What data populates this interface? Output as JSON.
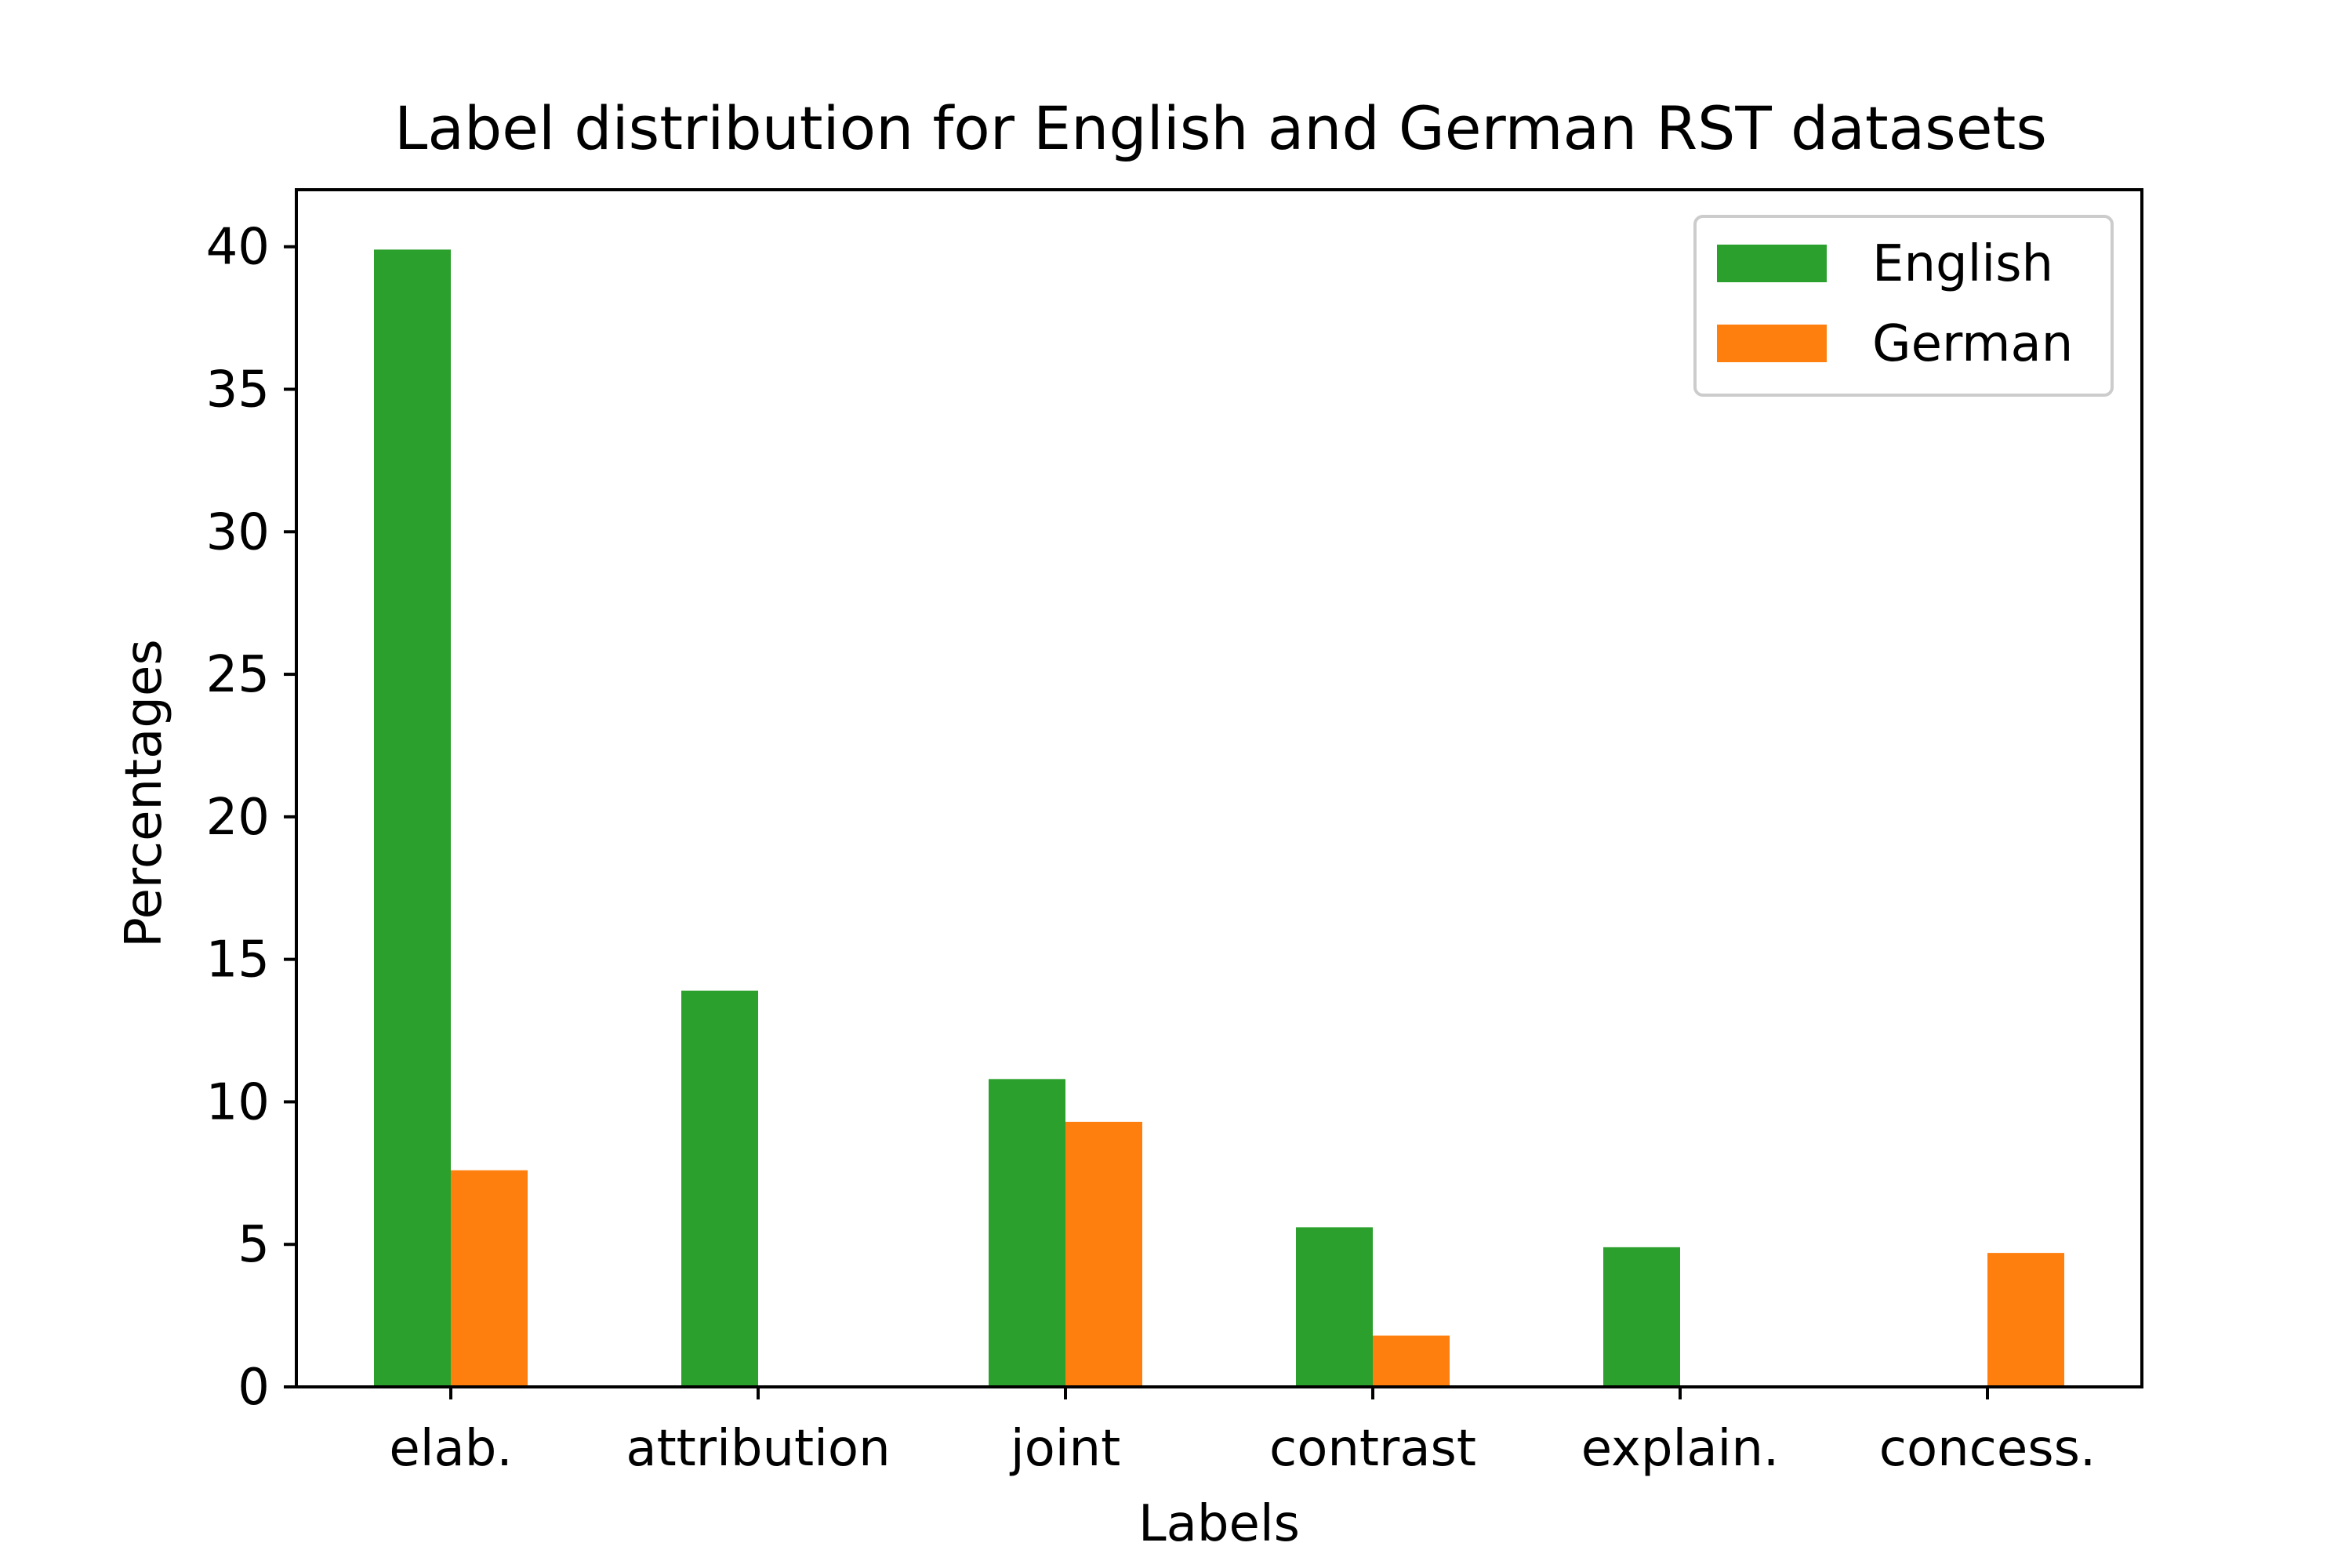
{
  "chart_data": {
    "type": "bar",
    "title": "Label distribution for English and German RST datasets",
    "xlabel": "Labels",
    "ylabel": "Percentages",
    "categories": [
      "elab.",
      "attribution",
      "joint",
      "contrast",
      "explain.",
      "concess."
    ],
    "series": [
      {
        "name": "English",
        "color": "#2ca02c",
        "values": [
          39.9,
          13.9,
          10.8,
          5.6,
          4.9,
          0
        ]
      },
      {
        "name": "German",
        "color": "#ff7f0e",
        "values": [
          7.6,
          0,
          9.3,
          1.8,
          0,
          4.7
        ]
      }
    ],
    "ylim": [
      0,
      42
    ],
    "yticks": [
      0,
      5,
      10,
      15,
      20,
      25,
      30,
      35,
      40
    ],
    "grid": false,
    "legend_position": "top-right"
  }
}
